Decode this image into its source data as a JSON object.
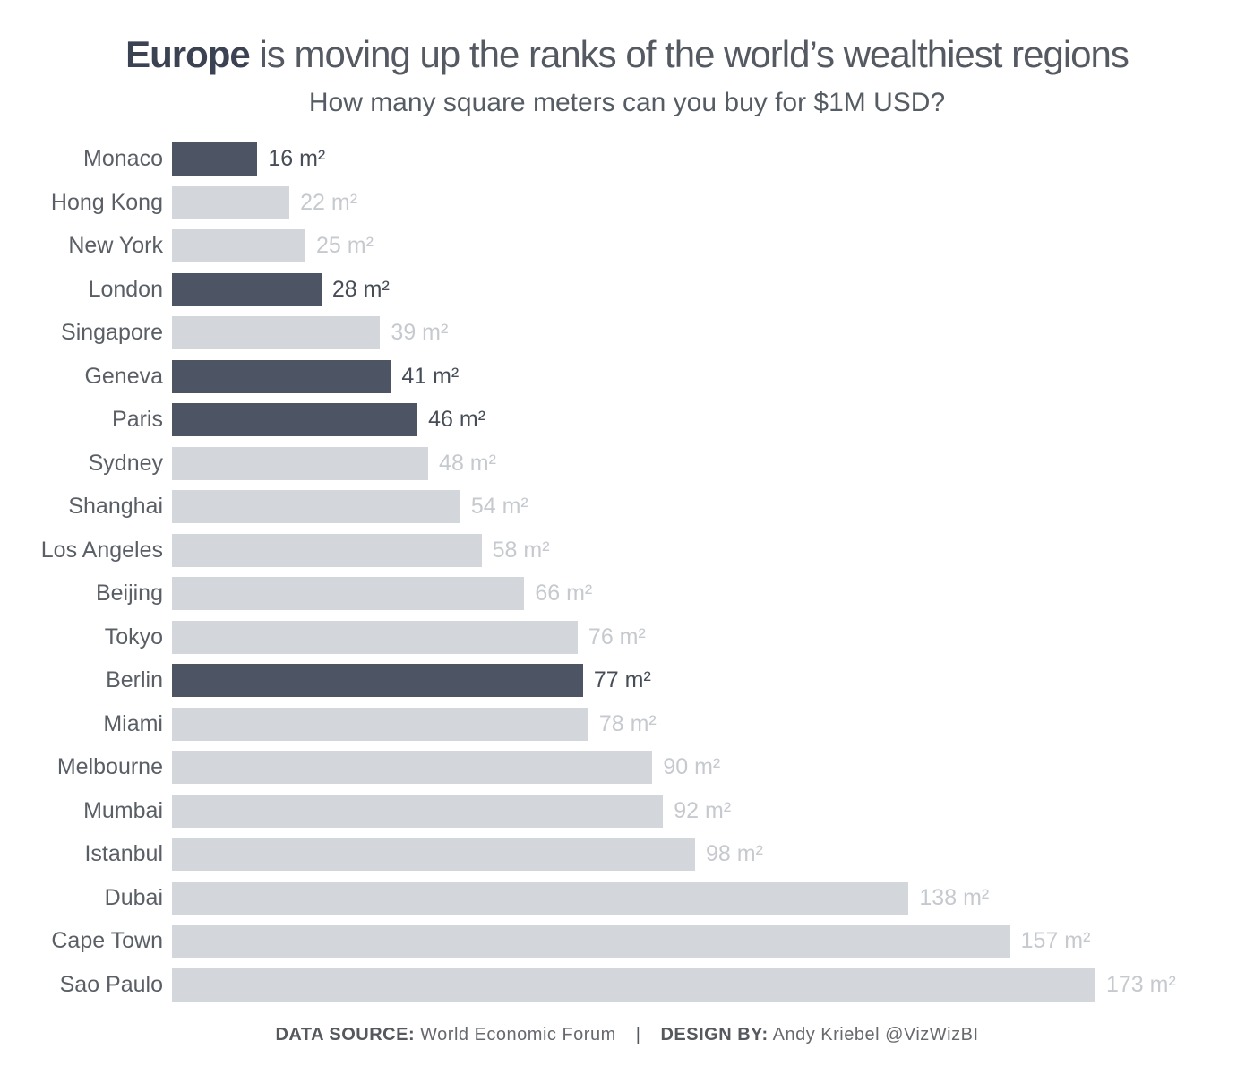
{
  "header": {
    "title_emphasis": "Europe",
    "title_rest": " is moving up the ranks of the world’s wealthiest regions",
    "subtitle": "How many square meters can you buy for $1M USD?"
  },
  "footer": {
    "source_label": "DATA SOURCE:",
    "source_value": " World Economic Forum",
    "separator": "|",
    "design_label": "DESIGN BY:",
    "design_value": " Andy Kriebel @VizWizBI"
  },
  "colors": {
    "bar_highlight": "#4d5464",
    "bar_default": "#d3d6da",
    "value_highlight_text": "#474d57",
    "value_default_text": "#c6cacf",
    "label_text": "#5a5f66",
    "title_emphasis_text": "#3b4252",
    "title_text": "#555a62",
    "subtitle_text": "#555c64",
    "footer_text": "#66696e"
  },
  "chart_data": {
    "type": "bar",
    "orientation": "horizontal",
    "title": "Europe is moving up the ranks of the world’s wealthiest regions",
    "subtitle": "How many square meters can you buy for $1M USD?",
    "unit": "m²",
    "xlim": [
      0,
      173
    ],
    "grid": false,
    "legend": false,
    "rows": [
      {
        "label": "Monaco",
        "value": 16,
        "value_label": "16 m²",
        "highlight": true
      },
      {
        "label": "Hong Kong",
        "value": 22,
        "value_label": "22 m²",
        "highlight": false
      },
      {
        "label": "New York",
        "value": 25,
        "value_label": "25 m²",
        "highlight": false
      },
      {
        "label": "London",
        "value": 28,
        "value_label": "28 m²",
        "highlight": true
      },
      {
        "label": "Singapore",
        "value": 39,
        "value_label": "39 m²",
        "highlight": false
      },
      {
        "label": "Geneva",
        "value": 41,
        "value_label": "41 m²",
        "highlight": true
      },
      {
        "label": "Paris",
        "value": 46,
        "value_label": "46 m²",
        "highlight": true
      },
      {
        "label": "Sydney",
        "value": 48,
        "value_label": "48 m²",
        "highlight": false
      },
      {
        "label": "Shanghai",
        "value": 54,
        "value_label": "54 m²",
        "highlight": false
      },
      {
        "label": "Los Angeles",
        "value": 58,
        "value_label": "58 m²",
        "highlight": false
      },
      {
        "label": "Beijing",
        "value": 66,
        "value_label": "66 m²",
        "highlight": false
      },
      {
        "label": "Tokyo",
        "value": 76,
        "value_label": "76 m²",
        "highlight": false
      },
      {
        "label": "Berlin",
        "value": 77,
        "value_label": "77 m²",
        "highlight": true
      },
      {
        "label": "Miami",
        "value": 78,
        "value_label": "78 m²",
        "highlight": false
      },
      {
        "label": "Melbourne",
        "value": 90,
        "value_label": "90 m²",
        "highlight": false
      },
      {
        "label": "Mumbai",
        "value": 92,
        "value_label": "92 m²",
        "highlight": false
      },
      {
        "label": "Istanbul",
        "value": 98,
        "value_label": "98 m²",
        "highlight": false
      },
      {
        "label": "Dubai",
        "value": 138,
        "value_label": "138 m²",
        "highlight": false
      },
      {
        "label": "Cape Town",
        "value": 157,
        "value_label": "157 m²",
        "highlight": false
      },
      {
        "label": "Sao Paulo",
        "value": 173,
        "value_label": "173 m²",
        "highlight": false
      }
    ]
  }
}
